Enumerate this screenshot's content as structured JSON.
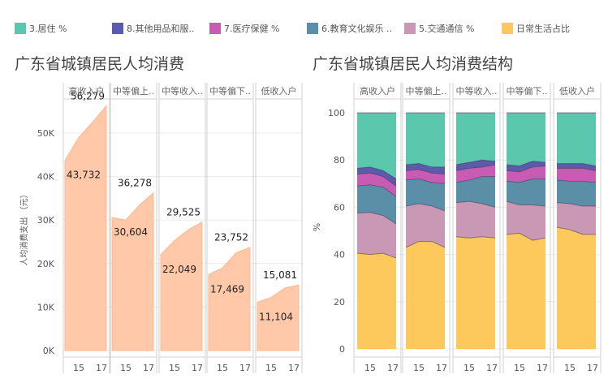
{
  "legend": {
    "items": [
      {
        "label": "3.居住 %",
        "color": "#5bc8ae"
      },
      {
        "label": "8.其他用品和服..",
        "color": "#5c5aab"
      },
      {
        "label": "7.医疗保健 %",
        "color": "#c85bb4"
      },
      {
        "label": "6.教育文化娱乐 ..",
        "color": "#5b8fa8"
      },
      {
        "label": "5.交通通信 %",
        "color": "#c998b4"
      },
      {
        "label": "日常生活占比",
        "color": "#fdc85c"
      }
    ]
  },
  "chart_data": [
    {
      "type": "area",
      "title": "广东省城镇居民人均消费",
      "ylabel": "人均消费支出 （元）",
      "ylim": [
        0,
        60000
      ],
      "y_ticks": [
        "0K",
        "10K",
        "20K",
        "30K",
        "40K",
        "50K"
      ],
      "x_ticks": [
        "15",
        "17"
      ],
      "fill_color": "#ffc8a8",
      "panels": [
        {
          "name": "高收入户",
          "values": [
            43732,
            49000,
            52500,
            56279
          ],
          "start_label": "43,732",
          "end_label": "56,279"
        },
        {
          "name": "中等偏上..",
          "values": [
            30604,
            30000,
            33500,
            36278
          ],
          "start_label": "30,604",
          "end_label": "36,278"
        },
        {
          "name": "中等收入..",
          "values": [
            22049,
            25300,
            27800,
            29525
          ],
          "start_label": "22,049",
          "end_label": "29,525"
        },
        {
          "name": "中等偏下..",
          "values": [
            17469,
            19000,
            22500,
            23752
          ],
          "start_label": "17,469",
          "end_label": "23,752"
        },
        {
          "name": "低收入户",
          "values": [
            11104,
            12200,
            14400,
            15081
          ],
          "start_label": "11,104",
          "end_label": "15,081"
        }
      ]
    },
    {
      "type": "area",
      "stacked": true,
      "title": "广东省城镇居民人均消费结构",
      "ylabel": "%",
      "ylim": [
        0,
        100
      ],
      "y_ticks": [
        "0",
        "20",
        "40",
        "60",
        "80",
        "100"
      ],
      "x_ticks": [
        "15",
        "17"
      ],
      "series_order": [
        "日常生活占比",
        "5.交通通信 %",
        "6.教育文化娱乐 ..",
        "7.医疗保健 %",
        "8.其他用品和服..",
        "3.居住 %"
      ],
      "colors": [
        "#fdc85c",
        "#c998b4",
        "#5b8fa8",
        "#c85bb4",
        "#5c5aab",
        "#5bc8ae"
      ],
      "panels": [
        {
          "name": "高收入户",
          "stack_tops": [
            [
              40.5,
              40.0,
              40.5,
              38.5
            ],
            [
              57.5,
              57.8,
              56.5,
              53.0
            ],
            [
              69.0,
              69.5,
              68.5,
              64.5
            ],
            [
              74.0,
              74.5,
              73.0,
              69.0
            ],
            [
              76.5,
              77.0,
              75.5,
              72.0
            ],
            [
              100,
              100,
              100,
              100
            ]
          ]
        },
        {
          "name": "中等偏上..",
          "stack_tops": [
            [
              43.0,
              45.5,
              45.5,
              43.0
            ],
            [
              60.5,
              61.5,
              60.5,
              58.5
            ],
            [
              71.5,
              72.0,
              70.5,
              70.0
            ],
            [
              75.5,
              76.0,
              74.5,
              74.0
            ],
            [
              78.0,
              78.5,
              77.0,
              77.0
            ],
            [
              100,
              100,
              100,
              100
            ]
          ]
        },
        {
          "name": "中等收入..",
          "stack_tops": [
            [
              47.5,
              47.0,
              47.5,
              47.0
            ],
            [
              62.0,
              62.5,
              61.5,
              60.0
            ],
            [
              70.5,
              71.5,
              73.0,
              73.0
            ],
            [
              75.5,
              76.5,
              77.0,
              78.0
            ],
            [
              78.0,
              79.0,
              80.0,
              79.5
            ],
            [
              100,
              100,
              100,
              100
            ]
          ]
        },
        {
          "name": "中等偏下..",
          "stack_tops": [
            [
              48.5,
              49.0,
              46.0,
              47.0
            ],
            [
              62.5,
              61.0,
              61.0,
              60.5
            ],
            [
              71.0,
              70.5,
              72.0,
              72.0
            ],
            [
              75.5,
              75.0,
              77.0,
              77.5
            ],
            [
              78.0,
              77.5,
              79.5,
              79.0
            ],
            [
              100,
              100,
              100,
              100
            ]
          ]
        },
        {
          "name": "低收入户",
          "stack_tops": [
            [
              51.5,
              50.5,
              48.5,
              48.5
            ],
            [
              62.0,
              61.5,
              60.5,
              60.5
            ],
            [
              71.5,
              71.0,
              71.0,
              70.5
            ],
            [
              76.5,
              76.5,
              76.5,
              75.5
            ],
            [
              78.5,
              78.5,
              78.5,
              77.5
            ],
            [
              100,
              100,
              100,
              100
            ]
          ]
        }
      ]
    }
  ]
}
